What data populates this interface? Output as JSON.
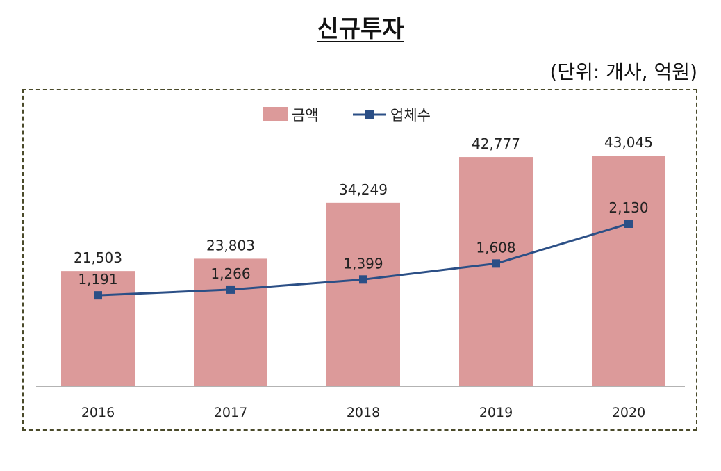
{
  "header": {
    "title": "신규투자",
    "unit": "(단위:  개사,  억원)"
  },
  "chart_data": {
    "type": "bar",
    "categories": [
      "2016",
      "2017",
      "2018",
      "2019",
      "2020"
    ],
    "series": [
      {
        "name": "금액",
        "type": "bar",
        "color": "#dc9a9a",
        "values": [
          21503,
          23803,
          34249,
          42777,
          43045
        ]
      },
      {
        "name": "업체수",
        "type": "line",
        "color": "#2b4f86",
        "values": [
          1191,
          1266,
          1399,
          1608,
          2130
        ]
      }
    ],
    "legend": {
      "position": "top",
      "items": [
        "금액",
        "업체수"
      ]
    },
    "data_labels": {
      "bar": [
        "21,503",
        "23,803",
        "34,249",
        "42,777",
        "43,045"
      ],
      "line": [
        "1,191",
        "1,266",
        "1,399",
        "1,608",
        "2,130"
      ]
    },
    "grid": false
  }
}
